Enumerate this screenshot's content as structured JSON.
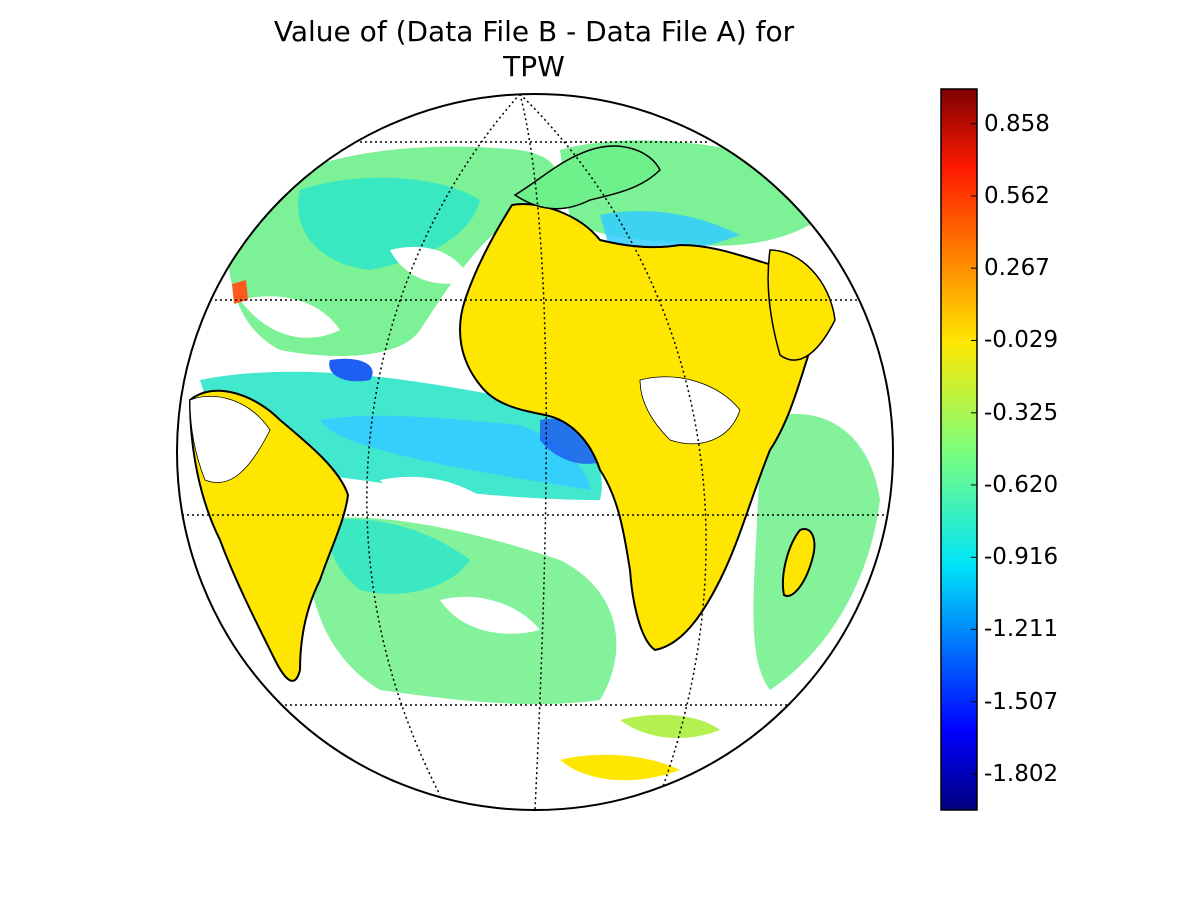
{
  "title": {
    "line1": "Value of (Data File B - Data File A) for",
    "line2": "TPW"
  },
  "colorbar": {
    "colormap": "jet",
    "tick_labels": [
      "0.858",
      "0.562",
      "0.267",
      "-0.029",
      "-0.325",
      "-0.620",
      "-0.916",
      "-1.211",
      "-1.507",
      "-1.802"
    ],
    "min": -1.95,
    "max": 1.0
  },
  "map": {
    "projection": "orthographic",
    "graticule": "dotted",
    "land_color": "#ffe600",
    "ocean_colors": [
      "#2ee6c8",
      "#6ef08a",
      "#33ccff",
      "#1e5ef0",
      "#b4f050"
    ]
  }
}
